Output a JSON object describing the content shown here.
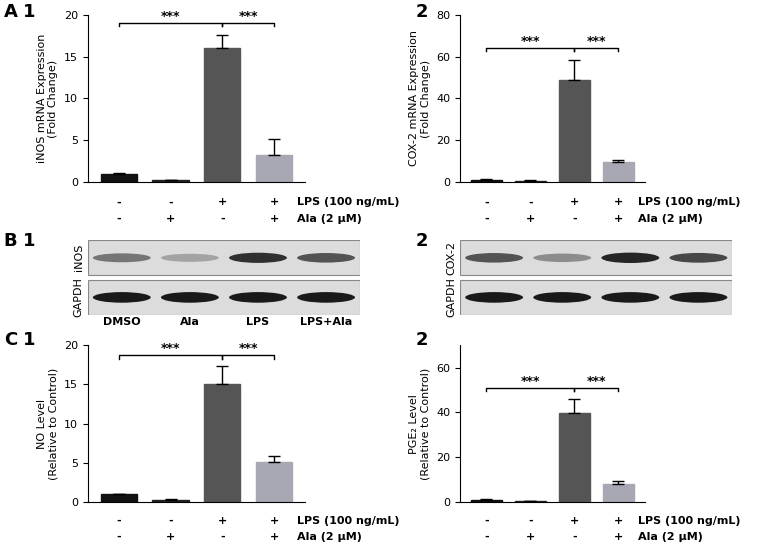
{
  "chart_data": [
    {
      "type": "bar",
      "panel": [
        "A",
        "1"
      ],
      "y_label": "iNOS mRNA Expression\n(Fold Change)",
      "categories": [
        null,
        null,
        null,
        null
      ],
      "conditions": [
        {
          "label": "LPS (100 ng/mL)",
          "marks": [
            "-",
            "-",
            "+",
            "+"
          ]
        },
        {
          "label": "Ala (2 μM)",
          "marks": [
            "-",
            "+",
            "-",
            "+"
          ]
        }
      ],
      "values": [
        1.0,
        0.2,
        16.0,
        3.3
      ],
      "errors": [
        0.1,
        0.1,
        1.6,
        1.9
      ],
      "colors": [
        "#111111",
        "#222222",
        "#555555",
        "#a8a8b4"
      ],
      "ylim": [
        0,
        20
      ],
      "yticks": [
        0,
        5,
        10,
        15,
        20
      ],
      "significance": [
        {
          "from": 0,
          "to": 2,
          "label": "***"
        },
        {
          "from": 2,
          "to": 3,
          "label": "***"
        }
      ]
    },
    {
      "type": "bar",
      "panel": [
        "2"
      ],
      "y_label": "COX-2 mRNA Expression\n(Fold Change)",
      "categories": [
        null,
        null,
        null,
        null
      ],
      "conditions": [
        {
          "label": "LPS (100 ng/mL)",
          "marks": [
            "-",
            "-",
            "+",
            "+"
          ]
        },
        {
          "label": "Ala (2 μM)",
          "marks": [
            "-",
            "+",
            "-",
            "+"
          ]
        }
      ],
      "values": [
        1.2,
        0.6,
        49.0,
        9.5
      ],
      "errors": [
        0.3,
        0.5,
        9.5,
        1.0
      ],
      "colors": [
        "#111111",
        "#222222",
        "#555555",
        "#a8a8b4"
      ],
      "ylim": [
        0,
        80
      ],
      "yticks": [
        0,
        20,
        40,
        60,
        80
      ],
      "significance": [
        {
          "from": 0,
          "to": 2,
          "label": "***"
        },
        {
          "from": 2,
          "to": 3,
          "label": "***"
        }
      ]
    },
    {
      "type": "western_blot",
      "panel": [
        "B",
        "1"
      ],
      "rows": [
        {
          "name": "iNOS",
          "intensities": [
            0.6,
            0.4,
            0.9,
            0.75
          ]
        },
        {
          "name": "GAPDH",
          "intensities": [
            1.0,
            1.0,
            1.0,
            1.0
          ]
        }
      ],
      "lanes": [
        "DMSO",
        "Ala",
        "LPS",
        "LPS+Ala"
      ]
    },
    {
      "type": "western_blot",
      "panel": [
        "2"
      ],
      "rows": [
        {
          "name": "COX-2",
          "intensities": [
            0.75,
            0.5,
            0.95,
            0.8
          ]
        },
        {
          "name": "GAPDH",
          "intensities": [
            1.0,
            1.0,
            1.0,
            1.0
          ]
        }
      ]
    },
    {
      "type": "bar",
      "panel": [
        "C",
        "1"
      ],
      "y_label": "NO Level\n(Relative to Control)",
      "categories": [
        null,
        null,
        null,
        null
      ],
      "conditions": [
        {
          "label": "LPS (100 ng/mL)",
          "marks": [
            "-",
            "-",
            "+",
            "+"
          ]
        },
        {
          "label": "Ala (2 μM)",
          "marks": [
            "-",
            "+",
            "-",
            "+"
          ]
        }
      ],
      "values": [
        1.0,
        0.3,
        15.1,
        5.1
      ],
      "errors": [
        0.1,
        0.1,
        2.2,
        0.8
      ],
      "colors": [
        "#111111",
        "#222222",
        "#555555",
        "#a8a8b4"
      ],
      "ylim": [
        0,
        20
      ],
      "yticks": [
        0,
        5,
        10,
        15,
        20
      ],
      "significance": [
        {
          "from": 0,
          "to": 2,
          "label": "***"
        },
        {
          "from": 2,
          "to": 3,
          "label": "***"
        }
      ]
    },
    {
      "type": "bar",
      "panel": [
        "2"
      ],
      "y_label": "PGE₂ Level\n(Relative to Control)",
      "categories": [
        null,
        null,
        null,
        null
      ],
      "conditions": [
        {
          "label": "LPS (100 ng/mL)",
          "marks": [
            "-",
            "-",
            "+",
            "+"
          ]
        },
        {
          "label": "Ala (2 μM)",
          "marks": [
            "-",
            "+",
            "-",
            "+"
          ]
        }
      ],
      "values": [
        1.0,
        0.5,
        39.8,
        8.2
      ],
      "errors": [
        0.2,
        0.1,
        6.2,
        1.2
      ],
      "colors": [
        "#111111",
        "#222222",
        "#555555",
        "#a8a8b4"
      ],
      "ylim": [
        0,
        70
      ],
      "yticks": [
        0,
        20,
        40,
        60
      ],
      "significance": [
        {
          "from": 0,
          "to": 2,
          "label": "***"
        },
        {
          "from": 2,
          "to": 3,
          "label": "***"
        }
      ]
    }
  ]
}
